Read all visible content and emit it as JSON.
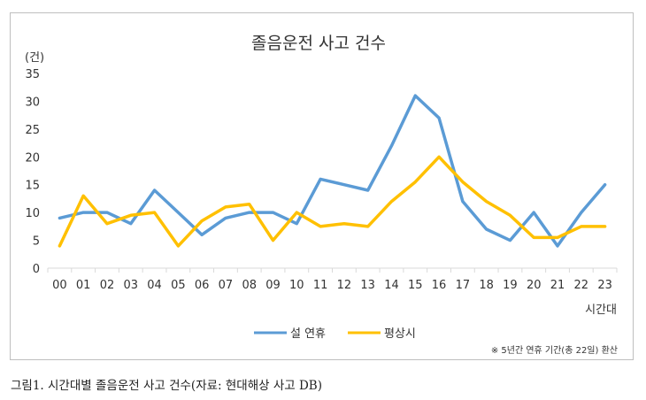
{
  "chart_data": {
    "type": "line",
    "title": "졸음운전 사고 건수",
    "ylabel": "(건)",
    "xlabel": "시간대",
    "ylim": [
      0,
      35
    ],
    "yticks": [
      0,
      5,
      10,
      15,
      20,
      25,
      30,
      35
    ],
    "grid": "none",
    "legend_position": "bottom",
    "categories": [
      "00",
      "01",
      "02",
      "03",
      "04",
      "05",
      "06",
      "07",
      "08",
      "09",
      "10",
      "11",
      "12",
      "13",
      "14",
      "15",
      "16",
      "17",
      "18",
      "19",
      "20",
      "21",
      "22",
      "23"
    ],
    "series": [
      {
        "name": "설 연휴",
        "color": "#5b9bd5",
        "values": [
          9,
          10,
          10,
          8,
          14,
          10,
          6,
          9,
          10,
          10,
          8,
          16,
          15,
          14,
          22,
          31,
          27,
          12,
          7,
          5,
          10,
          4,
          10,
          15
        ]
      },
      {
        "name": "평상시",
        "color": "#ffc000",
        "values": [
          4,
          13,
          8,
          9.5,
          10,
          4,
          8.5,
          11,
          11.5,
          5,
          10,
          7.5,
          8,
          7.5,
          12,
          15.5,
          20,
          15.5,
          12,
          9.5,
          5.5,
          5.5,
          7.5,
          7.5
        ]
      }
    ],
    "note": "※ 5년간 연휴 기간(총 22일) 환산"
  },
  "caption": "그림1. 시간대별 졸음운전 사고 건수(자료: 현대해상 사고 DB)"
}
